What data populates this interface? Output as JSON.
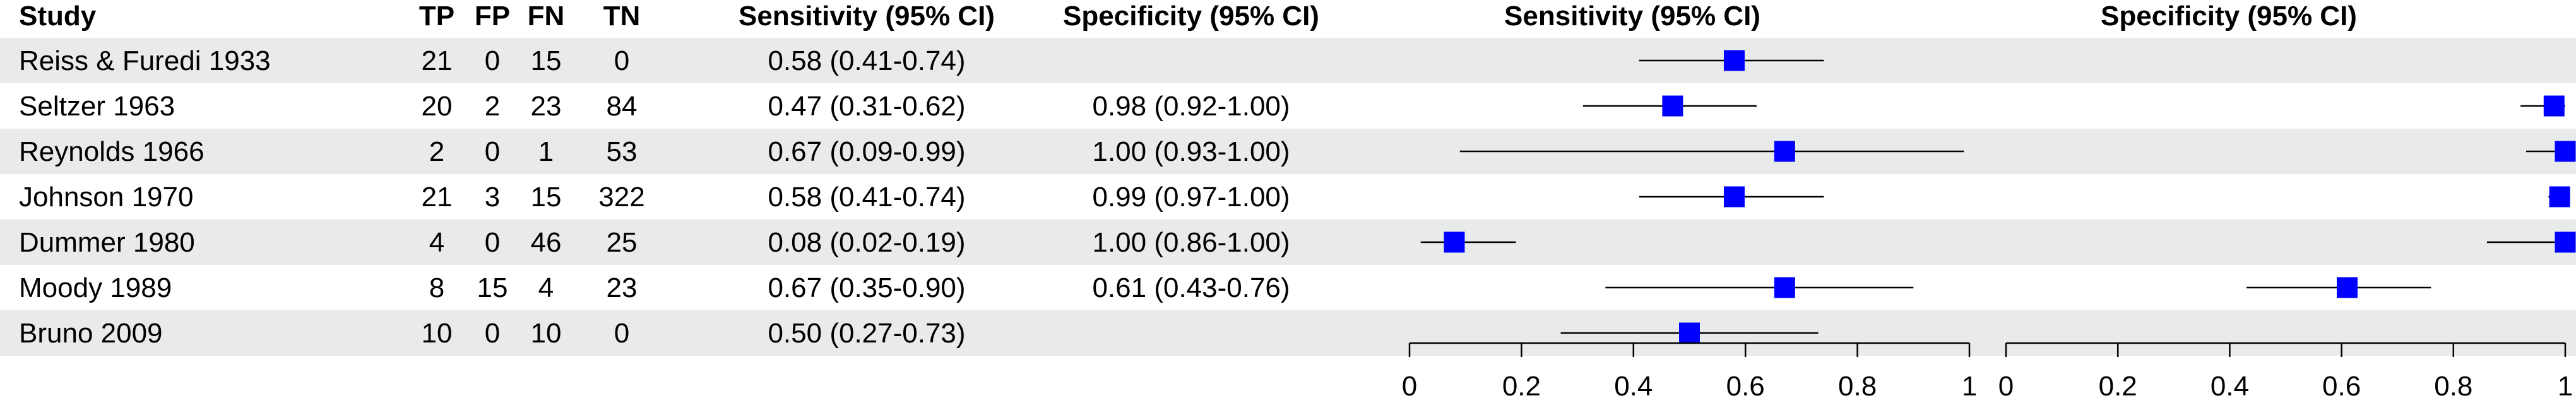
{
  "columns": {
    "study": "Study",
    "tp": "TP",
    "fp": "FP",
    "fn": "FN",
    "tn": "TN",
    "sens_ci": "Sensitivity (95% CI)",
    "spec_ci": "Specificity (95% CI)",
    "sens_plot": "Sensitivity (95% CI)",
    "spec_plot": "Specificity (95% CI)"
  },
  "colors": {
    "marker": "#0000ff",
    "stripe": "#e8ebe9",
    "line": "#000000"
  },
  "chart_data": {
    "type": "forest",
    "axis_ticks": [
      "0",
      "0.2",
      "0.4",
      "0.6",
      "0.8",
      "1"
    ],
    "xlim": [
      0,
      1
    ],
    "rows": [
      {
        "study": "Reiss & Furedi 1933",
        "tp": "21",
        "fp": "0",
        "fn": "15",
        "tn": "0",
        "sens_text": "0.58 (0.41-0.74)",
        "spec_text": "",
        "sens": 0.58,
        "sens_lo": 0.41,
        "sens_hi": 0.74,
        "spec": null,
        "spec_lo": null,
        "spec_hi": null
      },
      {
        "study": "Seltzer 1963",
        "tp": "20",
        "fp": "2",
        "fn": "23",
        "tn": "84",
        "sens_text": "0.47 (0.31-0.62)",
        "spec_text": "0.98 (0.92-1.00)",
        "sens": 0.47,
        "sens_lo": 0.31,
        "sens_hi": 0.62,
        "spec": 0.98,
        "spec_lo": 0.92,
        "spec_hi": 1.0
      },
      {
        "study": "Reynolds 1966",
        "tp": "2",
        "fp": "0",
        "fn": "1",
        "tn": "53",
        "sens_text": "0.67 (0.09-0.99)",
        "spec_text": "1.00 (0.93-1.00)",
        "sens": 0.67,
        "sens_lo": 0.09,
        "sens_hi": 0.99,
        "spec": 1.0,
        "spec_lo": 0.93,
        "spec_hi": 1.0
      },
      {
        "study": "Johnson 1970",
        "tp": "21",
        "fp": "3",
        "fn": "15",
        "tn": "322",
        "sens_text": "0.58 (0.41-0.74)",
        "spec_text": "0.99 (0.97-1.00)",
        "sens": 0.58,
        "sens_lo": 0.41,
        "sens_hi": 0.74,
        "spec": 0.99,
        "spec_lo": 0.97,
        "spec_hi": 1.0
      },
      {
        "study": "Dummer 1980",
        "tp": "4",
        "fp": "0",
        "fn": "46",
        "tn": "25",
        "sens_text": "0.08 (0.02-0.19)",
        "spec_text": "1.00 (0.86-1.00)",
        "sens": 0.08,
        "sens_lo": 0.02,
        "sens_hi": 0.19,
        "spec": 1.0,
        "spec_lo": 0.86,
        "spec_hi": 1.0
      },
      {
        "study": "Moody 1989",
        "tp": "8",
        "fp": "15",
        "fn": "4",
        "tn": "23",
        "sens_text": "0.67 (0.35-0.90)",
        "spec_text": "0.61 (0.43-0.76)",
        "sens": 0.67,
        "sens_lo": 0.35,
        "sens_hi": 0.9,
        "spec": 0.61,
        "spec_lo": 0.43,
        "spec_hi": 0.76
      },
      {
        "study": "Bruno 2009",
        "tp": "10",
        "fp": "0",
        "fn": "10",
        "tn": "0",
        "sens_text": "0.50 (0.27-0.73)",
        "spec_text": "",
        "sens": 0.5,
        "sens_lo": 0.27,
        "sens_hi": 0.73,
        "spec": null,
        "spec_lo": null,
        "spec_hi": null
      }
    ]
  }
}
